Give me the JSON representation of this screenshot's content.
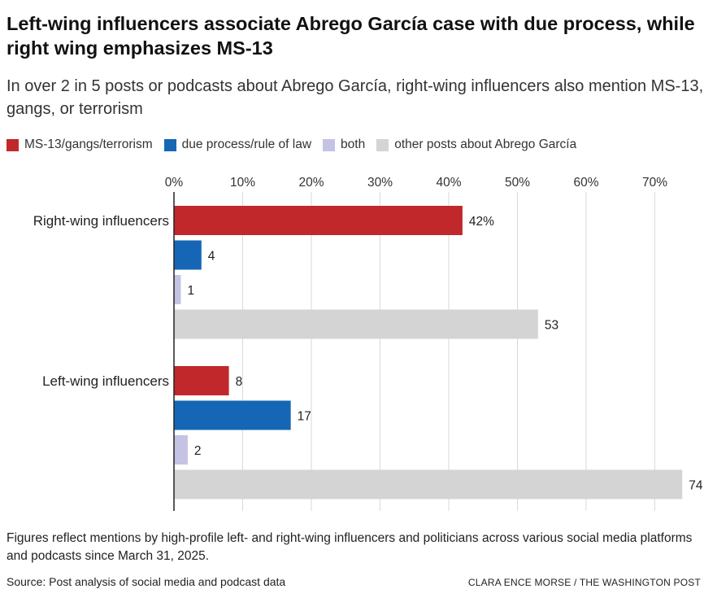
{
  "header": {
    "title": "Left-wing influencers associate Abrego García case with due process, while right wing emphasizes MS-13",
    "subtitle": "In over 2 in 5 posts or podcasts about Abrego García, right-wing influencers also mention MS-13, gangs, or terrorism"
  },
  "legend": [
    {
      "label": "MS-13/gangs/terrorism",
      "color": "#c0282b"
    },
    {
      "label": "due process/rule of law",
      "color": "#1567b5"
    },
    {
      "label": "both",
      "color": "#c5c3e3"
    },
    {
      "label": "other posts about Abrego García",
      "color": "#d4d4d4"
    }
  ],
  "chart_data": {
    "type": "bar",
    "orientation": "horizontal",
    "categories": [
      "Right-wing influencers",
      "Left-wing influencers"
    ],
    "series": [
      {
        "name": "MS-13/gangs/terrorism",
        "color": "#c0282b",
        "values": [
          42,
          8
        ],
        "labels": [
          "42%",
          "8"
        ]
      },
      {
        "name": "due process/rule of law",
        "color": "#1567b5",
        "values": [
          4,
          17
        ],
        "labels": [
          "4",
          "17"
        ]
      },
      {
        "name": "both",
        "color": "#c5c3e3",
        "values": [
          1,
          2
        ],
        "labels": [
          "1",
          "2"
        ]
      },
      {
        "name": "other posts about Abrego García",
        "color": "#d4d4d4",
        "values": [
          53,
          74
        ],
        "labels": [
          "53",
          "74"
        ]
      }
    ],
    "xticks": [
      0,
      10,
      20,
      30,
      40,
      50,
      60,
      70
    ],
    "xtick_labels": [
      "0%",
      "10%",
      "20%",
      "30%",
      "40%",
      "50%",
      "60%",
      "70%"
    ],
    "xlim": [
      0,
      74
    ],
    "grid": true,
    "legend_position": "top-left"
  },
  "footer": {
    "note": "Figures reflect mentions by high-profile left- and right-wing influencers and politicians across various social media platforms and podcasts since March 31, 2025.",
    "source": "Source: Post analysis of social media and podcast data",
    "credit": "CLARA ENCE MORSE / THE WASHINGTON POST"
  }
}
